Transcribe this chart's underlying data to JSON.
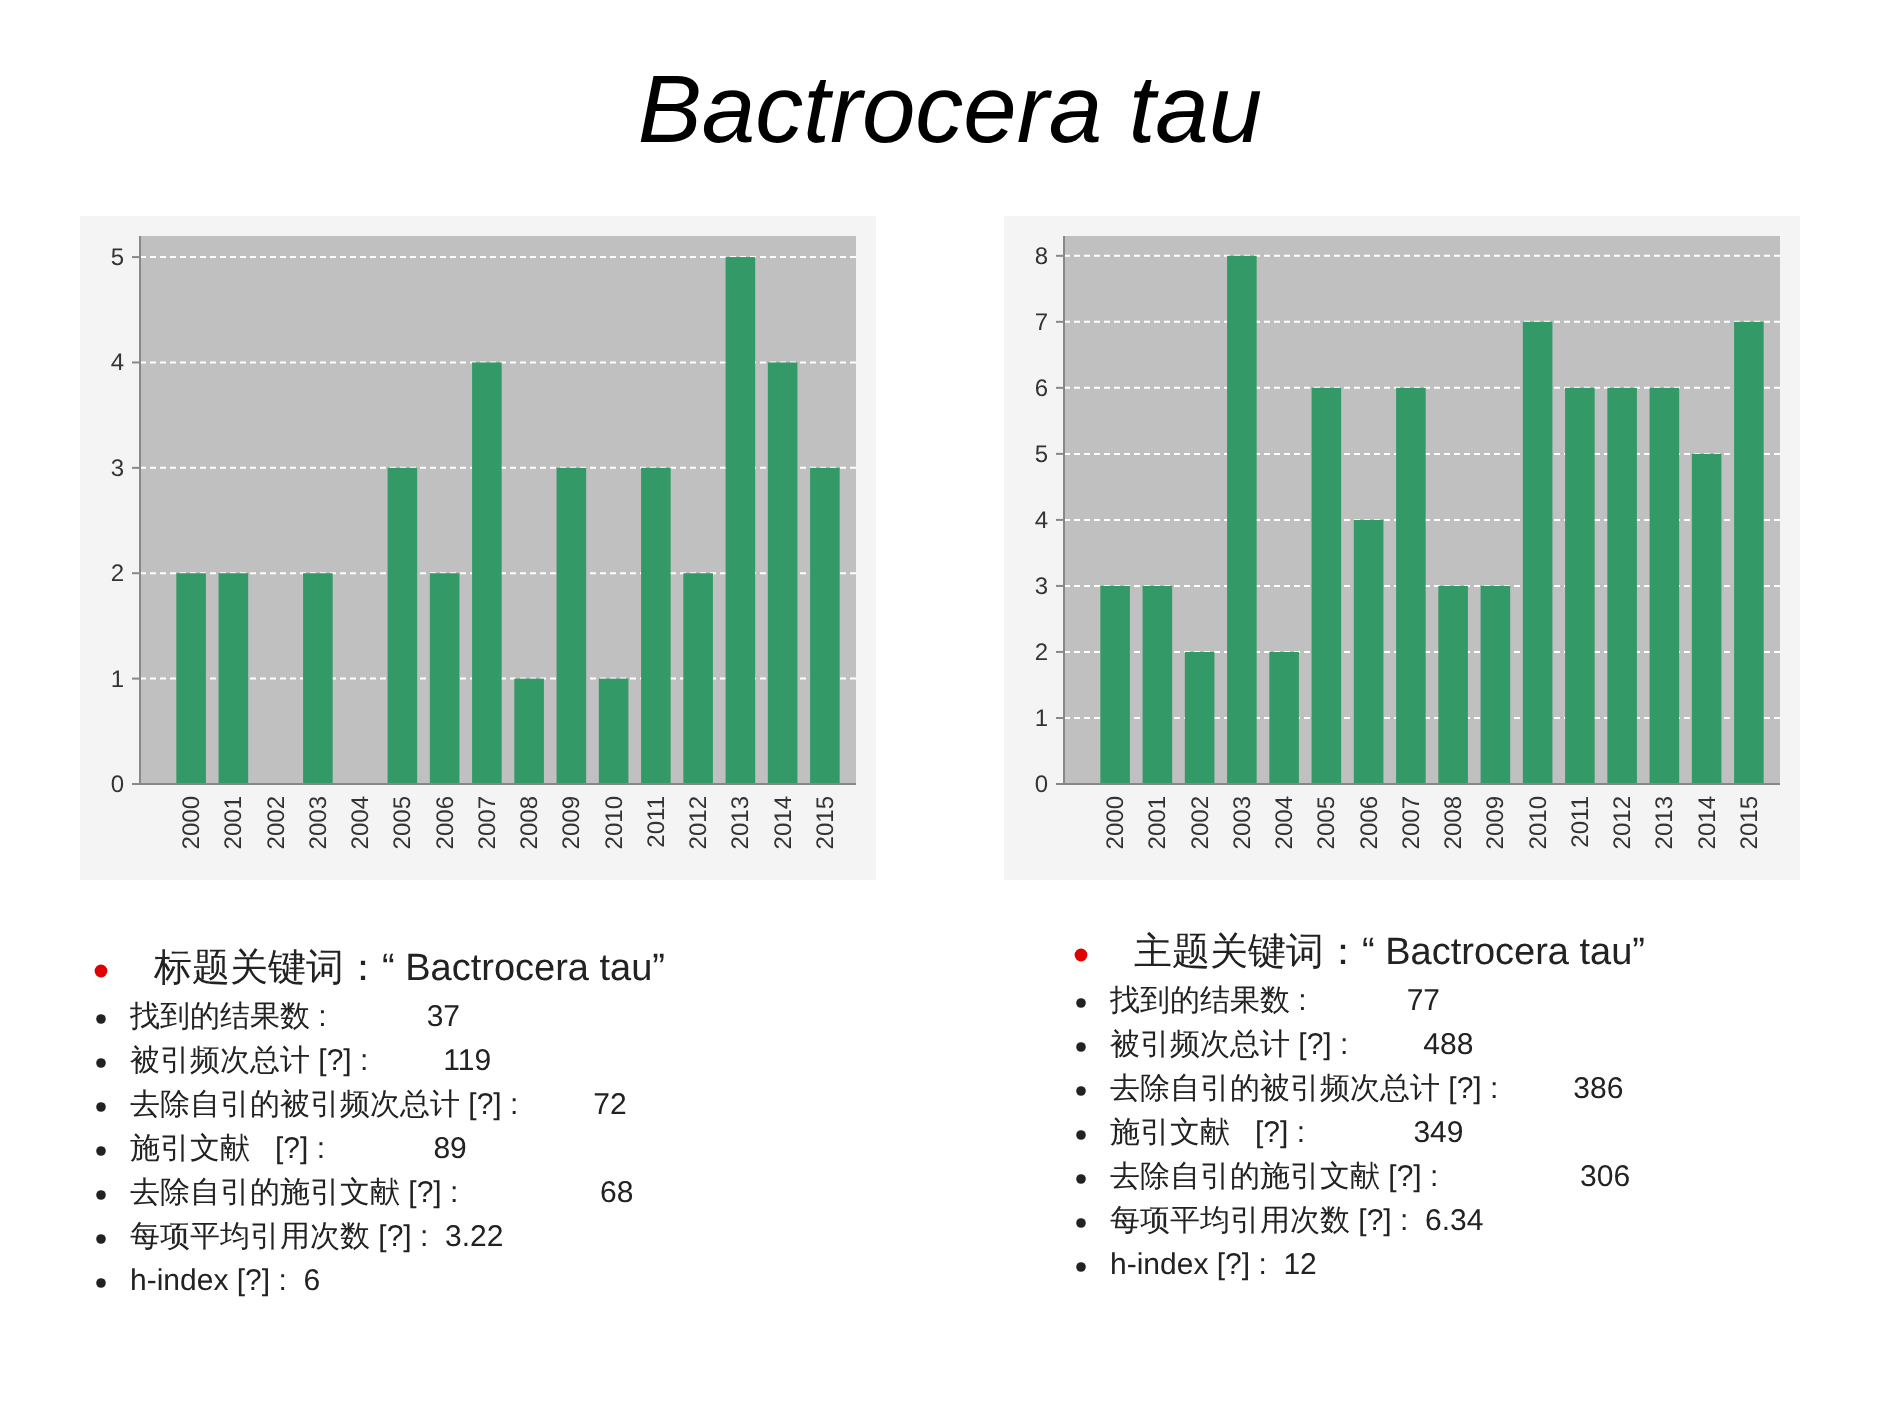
{
  "chart_data": [
    {
      "type": "bar",
      "title": "Bactrocera tau",
      "categories": [
        "2000",
        "2001",
        "2002",
        "2003",
        "2004",
        "2005",
        "2006",
        "2007",
        "2008",
        "2009",
        "2010",
        "2011",
        "2012",
        "2013",
        "2014",
        "2015"
      ],
      "values": [
        2,
        2,
        0,
        2,
        0,
        3,
        2,
        4,
        1,
        3,
        1,
        3,
        2,
        5,
        4,
        3
      ],
      "color": "#339966",
      "ylim": [
        0,
        5.2
      ],
      "yticks": [
        0,
        1,
        2,
        3,
        4,
        5
      ],
      "grid": "y",
      "annotations": [
        "标题关键词：“ Bactrocera tau”",
        "找到的结果数 :            37",
        "被引频次总计 [?] :         119",
        "去除自引的被引频次总计 [?] :         72",
        "施引文献   [?] :             89",
        "去除自引的施引文献 [?] :                 68",
        "每项平均引用次数 [?] :  3.22",
        "h-index [?] :  6"
      ]
    },
    {
      "type": "bar",
      "categories": [
        "2000",
        "2001",
        "2002",
        "2003",
        "2004",
        "2005",
        "2006",
        "2007",
        "2008",
        "2009",
        "2010",
        "2011",
        "2012",
        "2013",
        "2014",
        "2015"
      ],
      "values": [
        3,
        3,
        2,
        8,
        2,
        6,
        4,
        6,
        3,
        3,
        7,
        6,
        6,
        6,
        5,
        7
      ],
      "color": "#339966",
      "ylim": [
        0,
        8.3
      ],
      "yticks": [
        0,
        1,
        2,
        3,
        4,
        5,
        6,
        7,
        8
      ],
      "grid": "y",
      "annotations": [
        "主题关键词：“ Bactrocera tau”",
        "找到的结果数 :            77",
        "被引频次总计 [?] :         488",
        "去除自引的被引频次总计 [?] :         386",
        "施引文献   [?] :             349",
        "去除自引的施引文献 [?] :                 306",
        "每项平均引用次数 [?] :  6.34",
        "h-index [?] :  12"
      ]
    }
  ]
}
